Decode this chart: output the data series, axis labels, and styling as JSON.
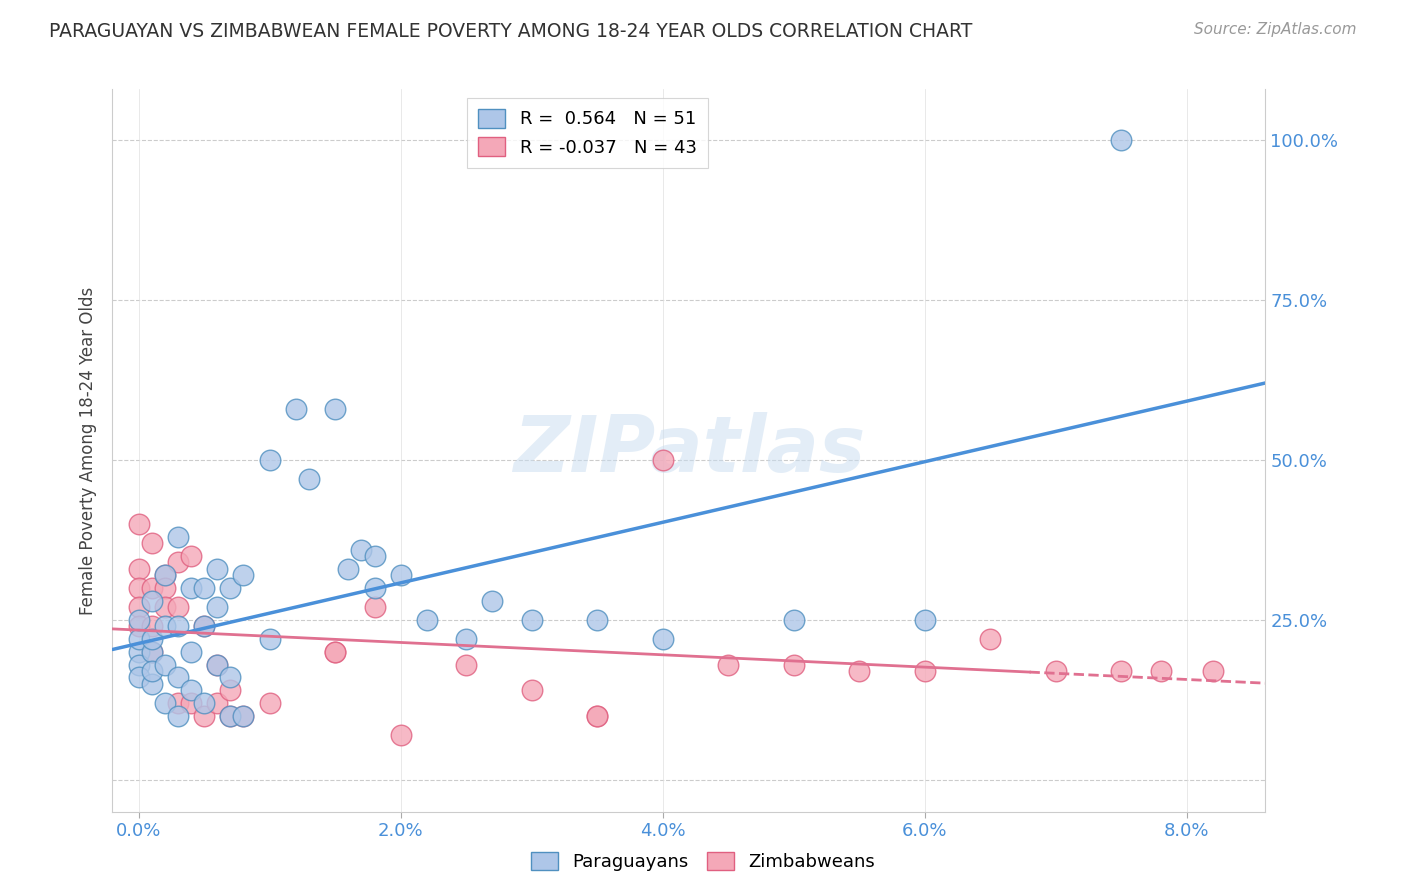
{
  "title": "PARAGUAYAN VS ZIMBABWEAN FEMALE POVERTY AMONG 18-24 YEAR OLDS CORRELATION CHART",
  "source": "Source: ZipAtlas.com",
  "xlabel_ticks": [
    "0.0%",
    "2.0%",
    "4.0%",
    "6.0%",
    "8.0%"
  ],
  "xlabel_vals": [
    0.0,
    0.02,
    0.04,
    0.06,
    0.08
  ],
  "ylabel": "Female Poverty Among 18-24 Year Olds",
  "ylim": [
    -0.05,
    1.08
  ],
  "xlim": [
    -0.002,
    0.086
  ],
  "yticks": [
    0.0,
    0.25,
    0.5,
    0.75,
    1.0
  ],
  "ytick_labels": [
    "",
    "25.0%",
    "50.0%",
    "75.0%",
    "100.0%"
  ],
  "legend_paraguay": "R =  0.564   N = 51",
  "legend_zimbabwe": "R = -0.037   N = 43",
  "paraguay_color": "#aec6e8",
  "zimbabwe_color": "#f4a8b8",
  "trend_paraguay_color": "#4a90d9",
  "trend_zimbabwe_color": "#e07090",
  "watermark": "ZIPatlas",
  "paraguay_points": [
    [
      0.0,
      0.2
    ],
    [
      0.0,
      0.22
    ],
    [
      0.0,
      0.25
    ],
    [
      0.0,
      0.18
    ],
    [
      0.0,
      0.16
    ],
    [
      0.001,
      0.28
    ],
    [
      0.001,
      0.2
    ],
    [
      0.001,
      0.15
    ],
    [
      0.001,
      0.22
    ],
    [
      0.001,
      0.17
    ],
    [
      0.002,
      0.24
    ],
    [
      0.002,
      0.32
    ],
    [
      0.002,
      0.18
    ],
    [
      0.002,
      0.12
    ],
    [
      0.003,
      0.24
    ],
    [
      0.003,
      0.38
    ],
    [
      0.003,
      0.16
    ],
    [
      0.003,
      0.1
    ],
    [
      0.004,
      0.3
    ],
    [
      0.004,
      0.14
    ],
    [
      0.004,
      0.2
    ],
    [
      0.005,
      0.3
    ],
    [
      0.005,
      0.24
    ],
    [
      0.005,
      0.12
    ],
    [
      0.006,
      0.33
    ],
    [
      0.006,
      0.27
    ],
    [
      0.006,
      0.18
    ],
    [
      0.007,
      0.3
    ],
    [
      0.007,
      0.16
    ],
    [
      0.007,
      0.1
    ],
    [
      0.008,
      0.32
    ],
    [
      0.008,
      0.1
    ],
    [
      0.01,
      0.5
    ],
    [
      0.01,
      0.22
    ],
    [
      0.012,
      0.58
    ],
    [
      0.013,
      0.47
    ],
    [
      0.015,
      0.58
    ],
    [
      0.016,
      0.33
    ],
    [
      0.017,
      0.36
    ],
    [
      0.018,
      0.35
    ],
    [
      0.018,
      0.3
    ],
    [
      0.02,
      0.32
    ],
    [
      0.022,
      0.25
    ],
    [
      0.025,
      0.22
    ],
    [
      0.027,
      0.28
    ],
    [
      0.03,
      0.25
    ],
    [
      0.035,
      0.25
    ],
    [
      0.04,
      0.22
    ],
    [
      0.05,
      0.25
    ],
    [
      0.06,
      0.25
    ],
    [
      0.075,
      1.0
    ]
  ],
  "zimbabwe_points": [
    [
      0.0,
      0.4
    ],
    [
      0.0,
      0.33
    ],
    [
      0.0,
      0.3
    ],
    [
      0.0,
      0.27
    ],
    [
      0.0,
      0.24
    ],
    [
      0.001,
      0.37
    ],
    [
      0.001,
      0.3
    ],
    [
      0.001,
      0.24
    ],
    [
      0.001,
      0.2
    ],
    [
      0.002,
      0.32
    ],
    [
      0.002,
      0.3
    ],
    [
      0.002,
      0.27
    ],
    [
      0.003,
      0.34
    ],
    [
      0.003,
      0.27
    ],
    [
      0.003,
      0.12
    ],
    [
      0.004,
      0.35
    ],
    [
      0.004,
      0.12
    ],
    [
      0.005,
      0.24
    ],
    [
      0.005,
      0.1
    ],
    [
      0.006,
      0.18
    ],
    [
      0.006,
      0.12
    ],
    [
      0.007,
      0.14
    ],
    [
      0.007,
      0.1
    ],
    [
      0.008,
      0.1
    ],
    [
      0.01,
      0.12
    ],
    [
      0.015,
      0.2
    ],
    [
      0.015,
      0.2
    ],
    [
      0.018,
      0.27
    ],
    [
      0.02,
      0.07
    ],
    [
      0.025,
      0.18
    ],
    [
      0.03,
      0.14
    ],
    [
      0.035,
      0.1
    ],
    [
      0.035,
      0.1
    ],
    [
      0.04,
      0.5
    ],
    [
      0.045,
      0.18
    ],
    [
      0.05,
      0.18
    ],
    [
      0.055,
      0.17
    ],
    [
      0.06,
      0.17
    ],
    [
      0.065,
      0.22
    ],
    [
      0.07,
      0.17
    ],
    [
      0.075,
      0.17
    ],
    [
      0.078,
      0.17
    ],
    [
      0.082,
      0.17
    ]
  ],
  "background_color": "#ffffff",
  "grid_color": "#cccccc"
}
